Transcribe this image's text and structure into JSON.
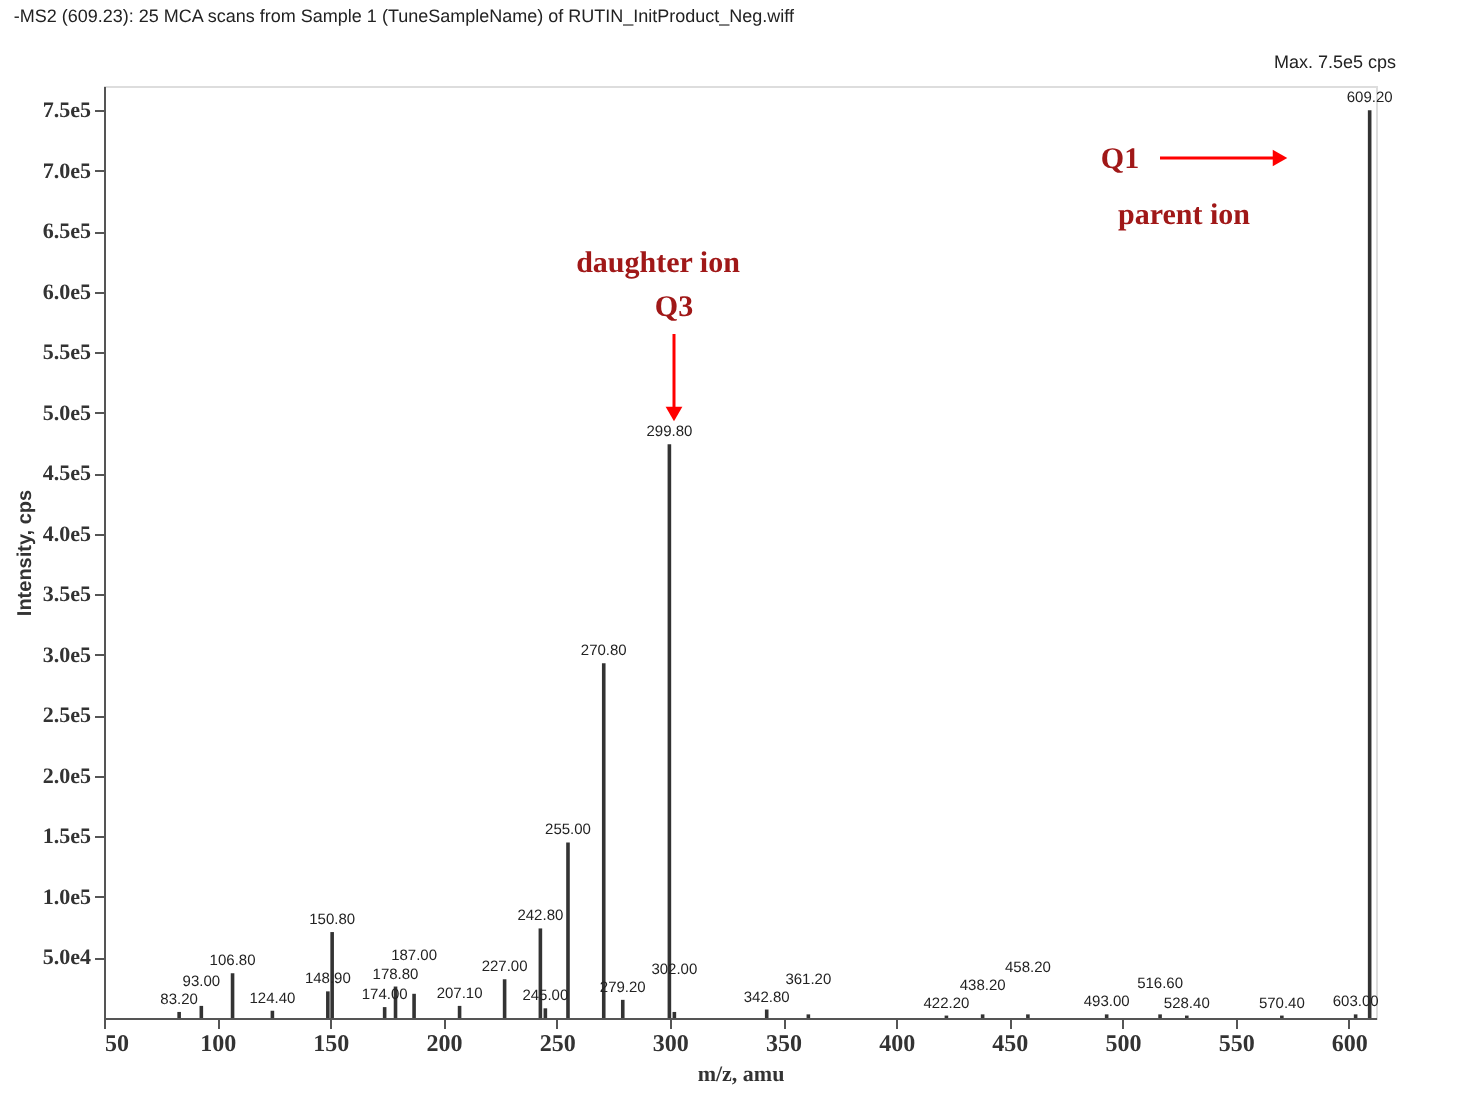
{
  "chart_data": {
    "type": "bar",
    "title": "-MS2 (609.23): 25 MCA scans from Sample 1 (TuneSampleName) of RUTIN_InitProduct_Neg.wiff",
    "xlabel": "m/z, amu",
    "ylabel": "Intensity, cps",
    "x": [
      83.2,
      93.0,
      106.8,
      124.4,
      148.9,
      150.8,
      174.0,
      178.8,
      187.0,
      207.1,
      227.0,
      242.8,
      245.0,
      255.0,
      270.8,
      279.2,
      299.8,
      302.0,
      342.8,
      361.2,
      422.2,
      438.2,
      458.2,
      493.0,
      516.6,
      528.4,
      570.4,
      603.0,
      609.2
    ],
    "series": [
      {
        "color": "#333333",
        "values": [
          5000,
          10000,
          37000,
          6000,
          22000,
          71000,
          9000,
          26000,
          20000,
          10000,
          32000,
          74000,
          8000,
          145000,
          293000,
          15000,
          474000,
          5000,
          7000,
          3000,
          2000,
          3000,
          3000,
          3000,
          3000,
          2000,
          2000,
          3000,
          750000
        ]
      }
    ],
    "xlim": [
      50,
      612
    ],
    "xticks": [
      50,
      100,
      150,
      200,
      250,
      300,
      350,
      400,
      450,
      500,
      550,
      600
    ],
    "ylim": [
      0,
      770000
    ],
    "yticks": [
      {
        "value": 50000,
        "label": "5.0e4"
      },
      {
        "value": 100000,
        "label": "1.0e5"
      },
      {
        "value": 150000,
        "label": "1.5e5"
      },
      {
        "value": 200000,
        "label": "2.0e5"
      },
      {
        "value": 250000,
        "label": "2.5e5"
      },
      {
        "value": 300000,
        "label": "3.0e5"
      },
      {
        "value": 350000,
        "label": "3.5e5"
      },
      {
        "value": 400000,
        "label": "4.0e5"
      },
      {
        "value": 450000,
        "label": "4.5e5"
      },
      {
        "value": 500000,
        "label": "5.0e5"
      },
      {
        "value": 550000,
        "label": "5.5e5"
      },
      {
        "value": 600000,
        "label": "6.0e5"
      },
      {
        "value": 650000,
        "label": "6.5e5"
      },
      {
        "value": 700000,
        "label": "7.0e5"
      },
      {
        "value": 750000,
        "label": "7.5e5"
      }
    ],
    "annotations": [
      "daughter ion",
      "Q3",
      "Q1",
      "parent ion",
      "Max. 7.5e5 cps",
      {
        "text": "83.20",
        "x": 83.2,
        "y": 5000
      },
      {
        "text": "93.00",
        "x": 93.0,
        "y": 10000
      },
      {
        "text": "106.80",
        "x": 106.8,
        "y": 37000
      },
      {
        "text": "124.40",
        "x": 124.4,
        "y": 6000
      },
      {
        "text": "148.90",
        "x": 148.9,
        "y": 22000
      },
      {
        "text": "150.80",
        "x": 150.8,
        "y": 71000
      },
      {
        "text": "174.00",
        "x": 174.0,
        "y": 9000
      },
      {
        "text": "178.80",
        "x": 178.8,
        "y": 26000
      },
      {
        "text": "187.00",
        "x": 187.0,
        "y": 20000
      },
      {
        "text": "207.10",
        "x": 207.1,
        "y": 10000
      },
      {
        "text": "227.00",
        "x": 227.0,
        "y": 32000
      },
      {
        "text": "242.80",
        "x": 242.8,
        "y": 74000
      },
      {
        "text": "245.00",
        "x": 245.0,
        "y": 8000
      },
      {
        "text": "255.00",
        "x": 255.0,
        "y": 145000
      },
      {
        "text": "270.80",
        "x": 270.8,
        "y": 293000
      },
      {
        "text": "279.20",
        "x": 279.2,
        "y": 15000
      },
      {
        "text": "299.80",
        "x": 299.8,
        "y": 474000
      },
      {
        "text": "302.00",
        "x": 302.0,
        "y": 5000
      },
      {
        "text": "342.80",
        "x": 342.8,
        "y": 7000
      },
      {
        "text": "361.20",
        "x": 361.2,
        "y": 3000
      },
      {
        "text": "422.20",
        "x": 422.2,
        "y": 2000
      },
      {
        "text": "438.20",
        "x": 438.2,
        "y": 3000
      },
      {
        "text": "458.20",
        "x": 458.2,
        "y": 3000
      },
      {
        "text": "493.00",
        "x": 493.0,
        "y": 3000
      },
      {
        "text": "516.60",
        "x": 516.6,
        "y": 3000
      },
      {
        "text": "528.40",
        "x": 528.4,
        "y": 2000
      },
      {
        "text": "570.40",
        "x": 570.4,
        "y": 2000
      },
      {
        "text": "603.00",
        "x": 603.0,
        "y": 3000
      },
      {
        "text": "609.20",
        "x": 609.2,
        "y": 750000
      }
    ],
    "grid": false
  }
}
